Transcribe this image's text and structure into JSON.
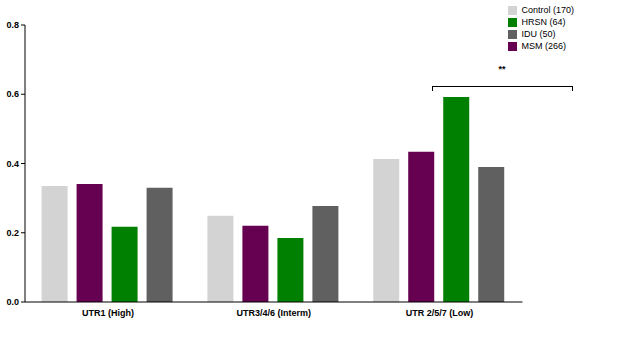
{
  "chart_data": {
    "type": "bar",
    "categories": [
      "UTR1 (High)",
      "UTR3/4/6 (Interm)",
      "UTR 2/5/7 (Low)"
    ],
    "series": [
      {
        "name": "Control (170)",
        "color": "#d3d3d3",
        "values": [
          0.335,
          0.249,
          0.413
        ]
      },
      {
        "name": "MSM (266)",
        "color": "#660050",
        "values": [
          0.341,
          0.22,
          0.434
        ]
      },
      {
        "name": "HRSN (64)",
        "color": "#008000",
        "values": [
          0.217,
          0.185,
          0.592
        ]
      },
      {
        "name": "IDU (50)",
        "color": "#606060",
        "values": [
          0.33,
          0.277,
          0.39
        ]
      }
    ],
    "ylim": [
      0,
      0.8
    ],
    "yticks": [
      {
        "value": 0,
        "label": "0.0"
      },
      0.2,
      0.4,
      0.6,
      0.8
    ],
    "grid": false,
    "legend": "top right",
    "annotations": [
      "**"
    ]
  }
}
